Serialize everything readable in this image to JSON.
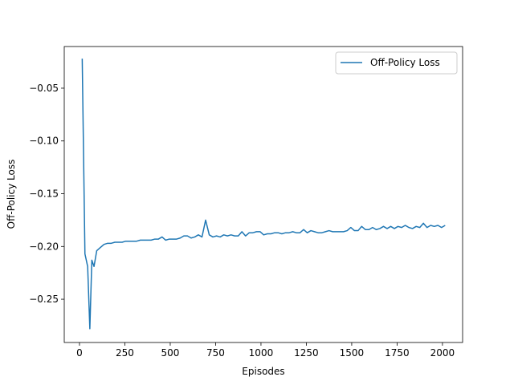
{
  "chart_data": {
    "type": "line",
    "xlabel": "Episodes",
    "ylabel": "Off-Policy Loss",
    "x": [
      15,
      30,
      45,
      57,
      68,
      80,
      95,
      115,
      135,
      155,
      175,
      195,
      215,
      235,
      255,
      275,
      295,
      315,
      335,
      355,
      375,
      395,
      415,
      435,
      455,
      475,
      495,
      515,
      535,
      555,
      575,
      595,
      615,
      635,
      655,
      675,
      695,
      715,
      735,
      755,
      775,
      795,
      815,
      835,
      855,
      875,
      895,
      915,
      935,
      955,
      975,
      995,
      1015,
      1035,
      1055,
      1075,
      1095,
      1115,
      1135,
      1155,
      1175,
      1195,
      1215,
      1235,
      1255,
      1275,
      1295,
      1315,
      1335,
      1355,
      1375,
      1395,
      1415,
      1435,
      1455,
      1475,
      1495,
      1515,
      1535,
      1555,
      1575,
      1595,
      1615,
      1635,
      1655,
      1675,
      1695,
      1715,
      1735,
      1755,
      1775,
      1795,
      1815,
      1835,
      1855,
      1875,
      1895,
      1915,
      1935,
      1955,
      1975,
      1995,
      2015
    ],
    "series": [
      {
        "name": "Off-Policy Loss",
        "color": "#1f77b4",
        "values": [
          -0.022,
          -0.207,
          -0.219,
          -0.278,
          -0.213,
          -0.219,
          -0.204,
          -0.201,
          -0.198,
          -0.197,
          -0.197,
          -0.196,
          -0.196,
          -0.196,
          -0.195,
          -0.195,
          -0.195,
          -0.195,
          -0.194,
          -0.194,
          -0.194,
          -0.194,
          -0.193,
          -0.193,
          -0.191,
          -0.194,
          -0.193,
          -0.193,
          -0.193,
          -0.192,
          -0.19,
          -0.19,
          -0.192,
          -0.191,
          -0.189,
          -0.191,
          -0.175,
          -0.189,
          -0.191,
          -0.19,
          -0.191,
          -0.189,
          -0.19,
          -0.189,
          -0.19,
          -0.19,
          -0.186,
          -0.19,
          -0.187,
          -0.187,
          -0.186,
          -0.186,
          -0.189,
          -0.188,
          -0.188,
          -0.187,
          -0.187,
          -0.188,
          -0.187,
          -0.187,
          -0.186,
          -0.187,
          -0.187,
          -0.184,
          -0.187,
          -0.185,
          -0.186,
          -0.187,
          -0.187,
          -0.186,
          -0.185,
          -0.186,
          -0.186,
          -0.186,
          -0.186,
          -0.185,
          -0.182,
          -0.185,
          -0.185,
          -0.181,
          -0.184,
          -0.184,
          -0.182,
          -0.184,
          -0.183,
          -0.181,
          -0.183,
          -0.181,
          -0.183,
          -0.181,
          -0.182,
          -0.18,
          -0.182,
          -0.183,
          -0.181,
          -0.182,
          -0.178,
          -0.182,
          -0.18,
          -0.181,
          -0.18,
          -0.182,
          -0.18
        ]
      }
    ],
    "xlim": [
      -84,
      2111
    ],
    "ylim": [
      -0.291,
      -0.0105
    ],
    "xticks": [
      0,
      250,
      500,
      750,
      1000,
      1250,
      1500,
      1750,
      2000
    ],
    "yticks": [
      {
        "value": -0.25,
        "label": "−0.25"
      },
      {
        "value": -0.2,
        "label": "−0.20"
      },
      {
        "value": -0.15,
        "label": "−0.15"
      },
      {
        "value": -0.1,
        "label": "−0.10"
      },
      {
        "value": -0.05,
        "label": "−0.05"
      }
    ],
    "grid": false,
    "legend": "upper right"
  }
}
